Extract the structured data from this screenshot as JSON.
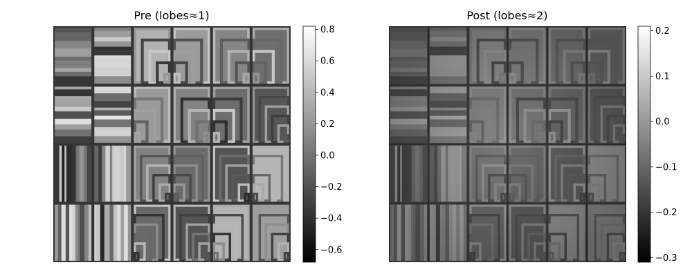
{
  "chart_data": [
    {
      "type": "heatmap",
      "title": "Pre (lobes≈1)",
      "colormap": "gray",
      "grid": false,
      "colorbar": {
        "vmin": -0.68,
        "vmax": 0.82,
        "ticks": [
          0.8,
          0.6,
          0.4,
          0.2,
          0.0,
          -0.2,
          -0.4,
          -0.6
        ],
        "tick_labels": [
          "0.8",
          "0.6",
          "0.4",
          "0.2",
          "0.0",
          "−0.2",
          "−0.4",
          "−0.6"
        ]
      },
      "tiles": {
        "rows": 4,
        "cols": 6,
        "patterns": [
          [
            "horizontal-stripes",
            "horizontal-stripes",
            "nested-corners",
            "nested-corners",
            "nested-corners",
            "nested-corners"
          ],
          [
            "horizontal-stripes",
            "horizontal-stripes",
            "nested-corners",
            "nested-corners",
            "nested-corners",
            "nested-corners"
          ],
          [
            "vertical-stripes",
            "vertical-stripes",
            "nested-corners",
            "nested-corners",
            "nested-corners",
            "nested-corners"
          ],
          [
            "vertical-stripes",
            "vertical-stripes",
            "nested-corners",
            "nested-corners",
            "nested-corners",
            "nested-corners"
          ]
        ]
      }
    },
    {
      "type": "heatmap",
      "title": "Post (lobes≈2)",
      "colormap": "gray",
      "grid": false,
      "colorbar": {
        "vmin": -0.31,
        "vmax": 0.21,
        "ticks": [
          0.2,
          0.1,
          0.0,
          -0.1,
          -0.2,
          -0.3
        ],
        "tick_labels": [
          "0.2",
          "0.1",
          "0.0",
          "−0.1",
          "−0.2",
          "−0.3"
        ]
      },
      "tiles": {
        "rows": 4,
        "cols": 6,
        "patterns": [
          [
            "horizontal-stripes",
            "horizontal-stripes",
            "nested-corners",
            "nested-corners",
            "nested-corners",
            "nested-corners"
          ],
          [
            "horizontal-stripes",
            "horizontal-stripes",
            "nested-corners",
            "nested-corners",
            "nested-corners",
            "nested-corners"
          ],
          [
            "vertical-stripes",
            "vertical-stripes",
            "nested-corners",
            "nested-corners",
            "nested-corners",
            "nested-corners"
          ],
          [
            "vertical-stripes",
            "vertical-stripes",
            "nested-corners",
            "nested-corners",
            "nested-corners",
            "nested-corners"
          ]
        ]
      }
    }
  ]
}
